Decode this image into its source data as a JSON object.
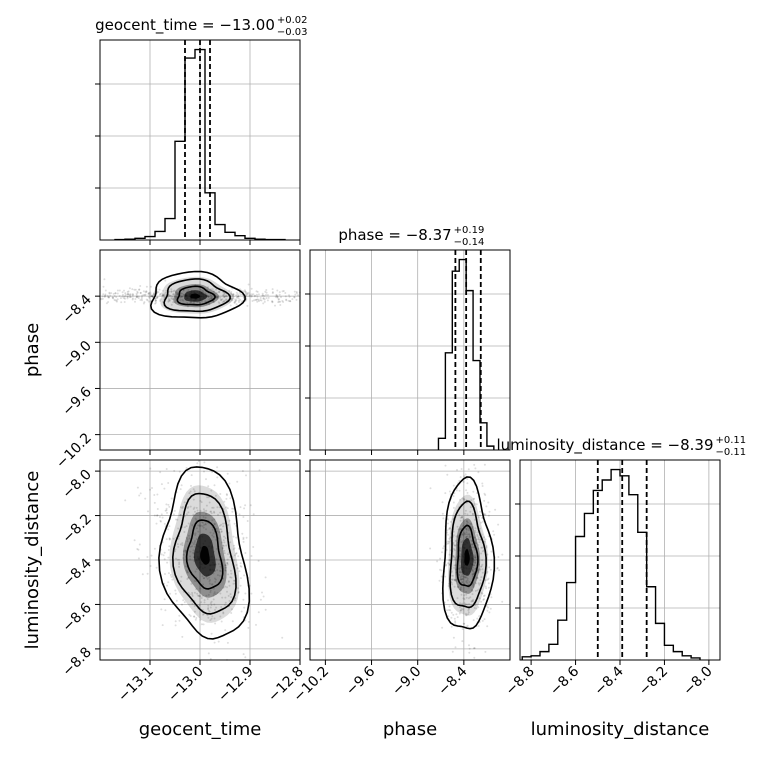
{
  "chart_data": {
    "type": "corner",
    "parameters": [
      "geocent_time",
      "phase",
      "luminosity_distance"
    ],
    "xlabels": [
      "geocent_time",
      "phase",
      "luminosity_distance"
    ],
    "ylabels": {
      "phase": "phase",
      "luminosity_distance": "luminosity_distance"
    },
    "ranges": {
      "geocent_time": [
        -13.2,
        -12.8
      ],
      "phase": [
        -10.4,
        -7.8
      ],
      "luminosity_distance": [
        -8.85,
        -7.95
      ]
    },
    "ticks": {
      "geocent_time": {
        "values": [
          -13.1,
          -13.0,
          -12.9,
          -12.8
        ],
        "labels": [
          "−13.1",
          "−13.0",
          "−12.9",
          "−12.8"
        ]
      },
      "phase": {
        "values": [
          -10.2,
          -9.6,
          -9.0,
          -8.4
        ],
        "labels": [
          "−10.2",
          "−9.6",
          "−9.0",
          "−8.4"
        ]
      },
      "luminosity_distance": {
        "values": [
          -8.8,
          -8.6,
          -8.4,
          -8.2,
          -8.0
        ],
        "labels": [
          "−8.8",
          "−8.6",
          "−8.4",
          "−8.2",
          "−8.0"
        ]
      }
    },
    "titles": [
      {
        "param": "geocent_time",
        "text": "geocent_time = −13.00",
        "plus": "+0.02",
        "minus": "−0.03"
      },
      {
        "param": "phase",
        "text": "phase = −8.37",
        "plus": "+0.19",
        "minus": "−0.14"
      },
      {
        "param": "luminosity_distance",
        "text": "luminosity_distance = −8.39",
        "plus": "+0.11",
        "minus": "−0.11"
      }
    ],
    "quantiles": {
      "geocent_time": [
        -13.03,
        -13.0,
        -12.98
      ],
      "phase": [
        -8.51,
        -8.37,
        -8.18
      ],
      "luminosity_distance": [
        -8.5,
        -8.39,
        -8.28
      ]
    },
    "histograms": {
      "geocent_time": {
        "bins": [
          -13.17,
          -13.15,
          -13.13,
          -13.11,
          -13.09,
          -13.07,
          -13.05,
          -13.03,
          -13.01,
          -12.99,
          -12.97,
          -12.95,
          -12.93,
          -12.91,
          -12.89,
          -12.87,
          -12.85,
          -12.83
        ],
        "counts": [
          0.5,
          1,
          2,
          4,
          10,
          25,
          115,
          212,
          222,
          55,
          18,
          9,
          5,
          2,
          1,
          0.5,
          0.5
        ]
      },
      "phase": {
        "bins": [
          -8.73,
          -8.64,
          -8.55,
          -8.46,
          -8.37,
          -8.28,
          -8.19,
          -8.1,
          -8.01
        ],
        "counts": [
          15,
          125,
          230,
          245,
          205,
          115,
          35,
          5
        ]
      },
      "luminosity_distance": {
        "bins": [
          -8.84,
          -8.8,
          -8.76,
          -8.72,
          -8.68,
          -8.64,
          -8.6,
          -8.56,
          -8.52,
          -8.48,
          -8.44,
          -8.4,
          -8.36,
          -8.32,
          -8.28,
          -8.24,
          -8.2,
          -8.16,
          -8.12,
          -8.08,
          -8.04
        ],
        "counts": [
          3,
          4,
          8,
          15,
          38,
          74,
          118,
          140,
          162,
          172,
          182,
          176,
          158,
          122,
          70,
          35,
          14,
          8,
          4,
          2
        ]
      }
    },
    "density_2d": [
      {
        "x": "geocent_time",
        "y": "phase",
        "center": [
          -13.01,
          -8.4
        ],
        "spread": [
          0.045,
          0.15
        ],
        "tilt": 0
      },
      {
        "x": "geocent_time",
        "y": "luminosity_distance",
        "center": [
          -12.99,
          -8.38
        ],
        "spread": [
          0.05,
          0.17
        ],
        "tilt": 0.65
      },
      {
        "x": "phase",
        "y": "luminosity_distance",
        "center": [
          -8.36,
          -8.39
        ],
        "spread": [
          0.16,
          0.17
        ],
        "tilt": 0
      }
    ]
  }
}
